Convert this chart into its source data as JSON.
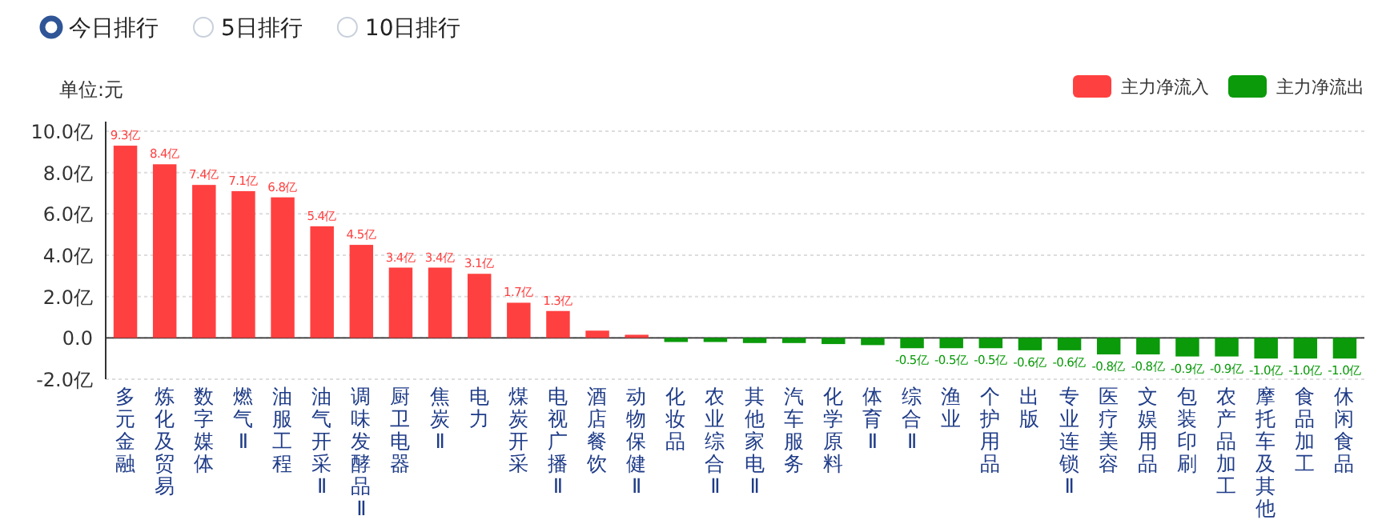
{
  "chart_data": {
    "type": "bar",
    "ylabel": "单位:元",
    "annotations": [
      "今日排行",
      "5日排行",
      "10日排行"
    ],
    "categories": [
      "多元金融",
      "炼化及贸易",
      "数字媒体",
      "燃气Ⅱ",
      "油服工程",
      "油气开采Ⅱ",
      "调味发酵品Ⅱ",
      "厨卫电器",
      "焦炭Ⅱ",
      "电力",
      "煤炭开采",
      "电视广播Ⅱ",
      "酒店餐饮",
      "动物保健Ⅱ",
      "化妆品",
      "农业综合Ⅱ",
      "其他家电Ⅱ",
      "汽车服务",
      "化学原料",
      "体育Ⅱ",
      "综合Ⅱ",
      "渔业",
      "个护用品",
      "出版",
      "专业连锁Ⅱ",
      "医疗美容",
      "文娱用品",
      "包装印刷",
      "农产品加工",
      "摩托车及其他",
      "食品加工",
      "休闲食品"
    ],
    "series": [
      {
        "name": "主力净流入",
        "color": "#ff4040",
        "values": [
          9.3,
          8.4,
          7.4,
          7.1,
          6.8,
          5.4,
          4.5,
          3.4,
          3.4,
          3.1,
          1.7,
          1.3,
          0.35,
          0.15,
          null,
          null,
          null,
          null,
          null,
          null,
          null,
          null,
          null,
          null,
          null,
          null,
          null,
          null,
          null,
          null,
          null,
          null
        ],
        "value_labels": [
          "9.3亿",
          "8.4亿",
          "7.4亿",
          "7.1亿",
          "6.8亿",
          "5.4亿",
          "4.5亿",
          "3.4亿",
          "3.4亿",
          "3.1亿",
          "1.7亿",
          "1.3亿",
          null,
          null,
          null,
          null,
          null,
          null,
          null,
          null,
          null,
          null,
          null,
          null,
          null,
          null,
          null,
          null,
          null,
          null,
          null,
          null
        ]
      },
      {
        "name": "主力净流出",
        "color": "#0a9a0a",
        "values": [
          null,
          null,
          null,
          null,
          null,
          null,
          null,
          null,
          null,
          null,
          null,
          null,
          null,
          null,
          -0.2,
          -0.2,
          -0.25,
          -0.25,
          -0.3,
          -0.35,
          -0.5,
          -0.5,
          -0.5,
          -0.6,
          -0.6,
          -0.8,
          -0.8,
          -0.9,
          -0.9,
          -1.0,
          -1.0,
          -1.0
        ],
        "value_labels": [
          null,
          null,
          null,
          null,
          null,
          null,
          null,
          null,
          null,
          null,
          null,
          null,
          null,
          null,
          null,
          null,
          null,
          null,
          null,
          null,
          "-0.5亿",
          "-0.5亿",
          "-0.5亿",
          "-0.6亿",
          "-0.6亿",
          "-0.8亿",
          "-0.8亿",
          "-0.9亿",
          "-0.9亿",
          "-1.0亿",
          "-1.0亿",
          "-1.0亿"
        ]
      }
    ],
    "ylim": [
      -2,
      10
    ],
    "yticks": [
      {
        "value": -2,
        "label": "-2.0亿"
      },
      {
        "value": 0,
        "label": "0.0"
      },
      {
        "value": 2,
        "label": "2.0亿"
      },
      {
        "value": 4,
        "label": "4.0亿"
      },
      {
        "value": 6,
        "label": "6.0亿"
      },
      {
        "value": 8,
        "label": "8.0亿"
      },
      {
        "value": 10,
        "label": "10.0亿"
      }
    ],
    "grid": "y",
    "legend": "top right"
  }
}
